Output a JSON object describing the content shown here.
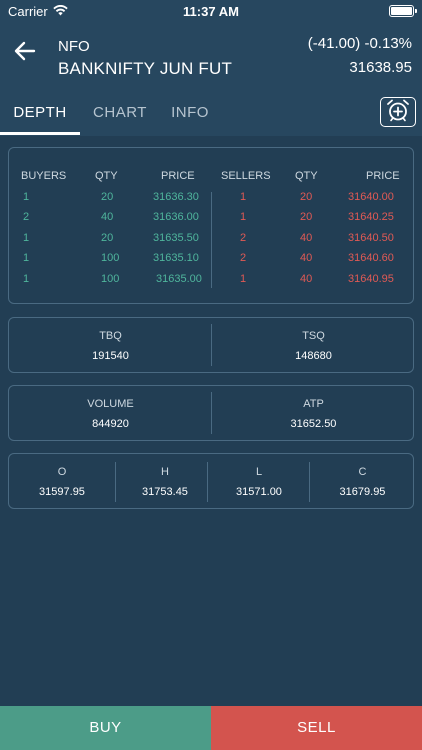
{
  "status_bar": {
    "carrier": "Carrier",
    "time": "11:37 AM"
  },
  "header": {
    "exchange": "NFO",
    "symbol": "BANKNIFTY JUN FUT",
    "change": "(-41.00) -0.13%",
    "ltp": "31638.95"
  },
  "tabs": [
    {
      "label": "DEPTH",
      "active": true
    },
    {
      "label": "CHART",
      "active": false
    },
    {
      "label": "INFO",
      "active": false
    }
  ],
  "depth": {
    "headers": [
      "BUYERS",
      "QTY",
      "PRICE",
      "SELLERS",
      "QTY",
      "PRICE"
    ],
    "rows": [
      {
        "buyers": "1",
        "bqty": "20",
        "bprice": "31636.30",
        "sellers": "1",
        "sqty": "20",
        "sprice": "31640.00"
      },
      {
        "buyers": "2",
        "bqty": "40",
        "bprice": "31636.00",
        "sellers": "1",
        "sqty": "20",
        "sprice": "31640.25"
      },
      {
        "buyers": "1",
        "bqty": "20",
        "bprice": "31635.50",
        "sellers": "2",
        "sqty": "40",
        "sprice": "31640.50"
      },
      {
        "buyers": "1",
        "bqty": "100",
        "bprice": "31635.10",
        "sellers": "2",
        "sqty": "40",
        "sprice": "31640.60"
      },
      {
        "buyers": "1",
        "bqty": "100",
        "bprice": "31635.00",
        "sellers": "1",
        "sqty": "40",
        "sprice": "31640.95"
      }
    ]
  },
  "totals": {
    "tbq_label": "TBQ",
    "tbq": "191540",
    "tsq_label": "TSQ",
    "tsq": "148680"
  },
  "volume": {
    "volume_label": "VOLUME",
    "volume": "844920",
    "atp_label": "ATP",
    "atp": "31652.50"
  },
  "ohlc": {
    "o_label": "O",
    "o": "31597.95",
    "h_label": "H",
    "h": "31753.45",
    "l_label": "L",
    "l": "31571.00",
    "c_label": "C",
    "c": "31679.95"
  },
  "actions": {
    "buy": "BUY",
    "sell": "SELL"
  },
  "colors": {
    "buy": "#4c9c88",
    "sell": "#d3544e",
    "bg": "#27475f",
    "content_bg": "#223e54"
  }
}
